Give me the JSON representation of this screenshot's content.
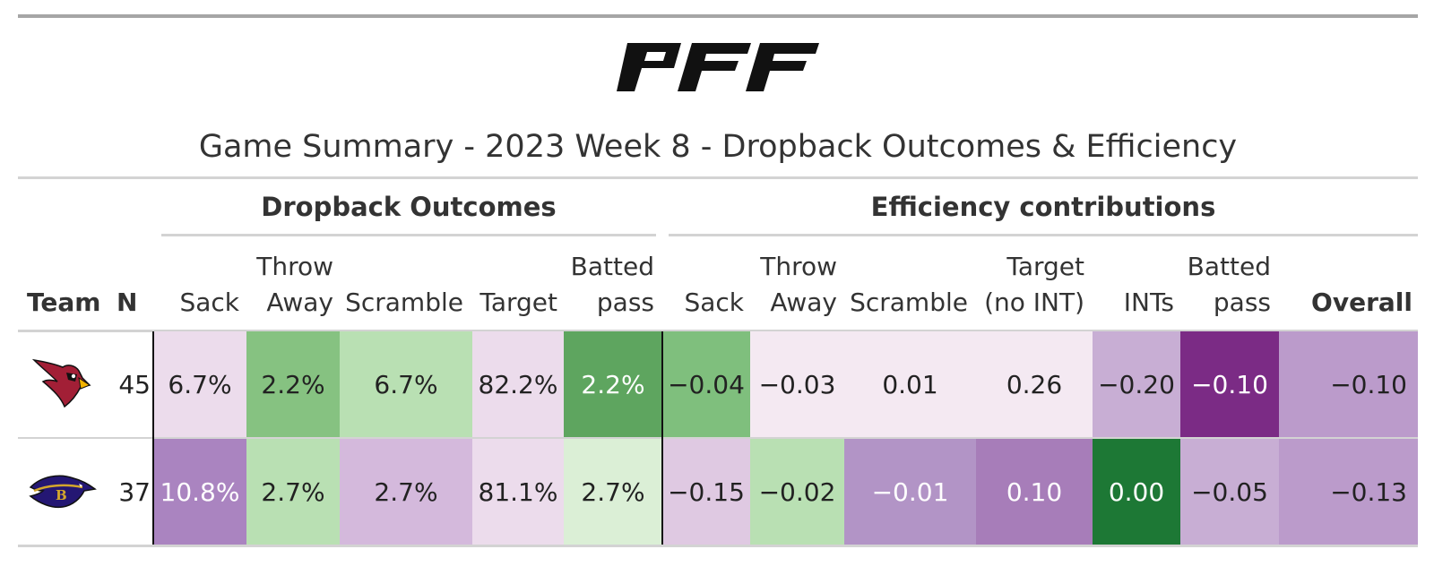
{
  "logo_text": "PFF",
  "title": "Game Summary - 2023 Week 8 - Dropback Outcomes & Efficiency",
  "spanners": {
    "outcomes": "Dropback Outcomes",
    "efficiency": "Efficiency contributions"
  },
  "columns": {
    "team": "Team",
    "n": "N",
    "o_sack": [
      "",
      "Sack"
    ],
    "o_throw": [
      "Throw",
      "Away"
    ],
    "o_scramble": [
      "",
      "Scramble"
    ],
    "o_target": [
      "",
      "Target"
    ],
    "o_batted": [
      "Batted",
      "pass"
    ],
    "e_sack": [
      "",
      "Sack"
    ],
    "e_throw": [
      "Throw",
      "Away"
    ],
    "e_scramble": [
      "",
      "Scramble"
    ],
    "e_target": [
      "Target",
      "(no INT)"
    ],
    "e_ints": [
      "",
      "INTs"
    ],
    "e_batted": [
      "Batted",
      "pass"
    ],
    "e_overall": "Overall"
  },
  "rows": [
    {
      "team_icon": "cardinals-logo",
      "n": "45",
      "cells": [
        {
          "v": "6.7%",
          "bg": "#ecdcec",
          "fg": "#222"
        },
        {
          "v": "2.2%",
          "bg": "#86c281",
          "fg": "#222"
        },
        {
          "v": "6.7%",
          "bg": "#b9e0b3",
          "fg": "#222"
        },
        {
          "v": "82.2%",
          "bg": "#ecdcec",
          "fg": "#222"
        },
        {
          "v": "2.2%",
          "bg": "#5ea55f",
          "fg": "#ffffff"
        },
        {
          "v": "−0.04",
          "bg": "#7fbf7d",
          "fg": "#222"
        },
        {
          "v": "−0.03",
          "bg": "#f4e9f2",
          "fg": "#222"
        },
        {
          "v": "0.01",
          "bg": "#f4e9f2",
          "fg": "#222"
        },
        {
          "v": "0.26",
          "bg": "#f4e9f2",
          "fg": "#222"
        },
        {
          "v": "−0.20",
          "bg": "#c8aed4",
          "fg": "#222"
        },
        {
          "v": "−0.10",
          "bg": "#7b2b85",
          "fg": "#ffffff"
        },
        {
          "v": "−0.10",
          "bg": "#bb9bcb",
          "fg": "#222"
        }
      ]
    },
    {
      "team_icon": "ravens-logo",
      "n": "37",
      "cells": [
        {
          "v": "10.8%",
          "bg": "#aa84c0",
          "fg": "#ffffff"
        },
        {
          "v": "2.7%",
          "bg": "#b9e0b3",
          "fg": "#222"
        },
        {
          "v": "2.7%",
          "bg": "#d4b9dc",
          "fg": "#222"
        },
        {
          "v": "81.1%",
          "bg": "#ecdcec",
          "fg": "#222"
        },
        {
          "v": "2.7%",
          "bg": "#dbefd6",
          "fg": "#222"
        },
        {
          "v": "−0.15",
          "bg": "#dfc9e2",
          "fg": "#222"
        },
        {
          "v": "−0.02",
          "bg": "#b9e0b3",
          "fg": "#222"
        },
        {
          "v": "−0.01",
          "bg": "#b294c6",
          "fg": "#ffffff"
        },
        {
          "v": "0.10",
          "bg": "#a77db9",
          "fg": "#ffffff"
        },
        {
          "v": "0.00",
          "bg": "#1d7835",
          "fg": "#ffffff"
        },
        {
          "v": "−0.05",
          "bg": "#c8aed4",
          "fg": "#222"
        },
        {
          "v": "−0.13",
          "bg": "#bb9bcb",
          "fg": "#222"
        }
      ]
    }
  ]
}
